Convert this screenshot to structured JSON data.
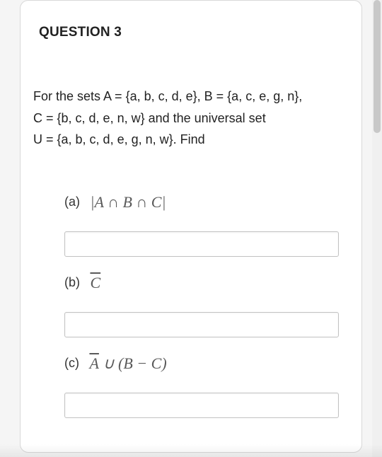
{
  "question": {
    "title": "QUESTION 3",
    "problem_line1": "For the sets A = {a, b, c, d, e},  B = {a, c, e, g, n},",
    "problem_line2": "C = {b, c, d, e, n, w} and the universal set",
    "problem_line3": "U = {a, b, c, d, e, g, n, w}. Find"
  },
  "parts": {
    "a": {
      "label": "(a)",
      "expr_html": "|<i>A</i> ∩ <i>B</i> ∩ <i>C</i>|",
      "value": ""
    },
    "b": {
      "label": "(b)",
      "expr_html": "<span class=\"overline\"><i>C</i></span>",
      "value": ""
    },
    "c": {
      "label": "(c)",
      "expr_html": "<span class=\"overline\"><i>A</i></span> ∪ (<i>B</i> − <i>C</i>)",
      "value": ""
    }
  },
  "styles": {
    "card_border": "#d8d8d8",
    "input_border": "#c2c2c2",
    "expr_color": "#5a5a5a",
    "scrollbar_thumb": "#c8c8c8",
    "scrollbar_track": "#f0f0f0"
  }
}
